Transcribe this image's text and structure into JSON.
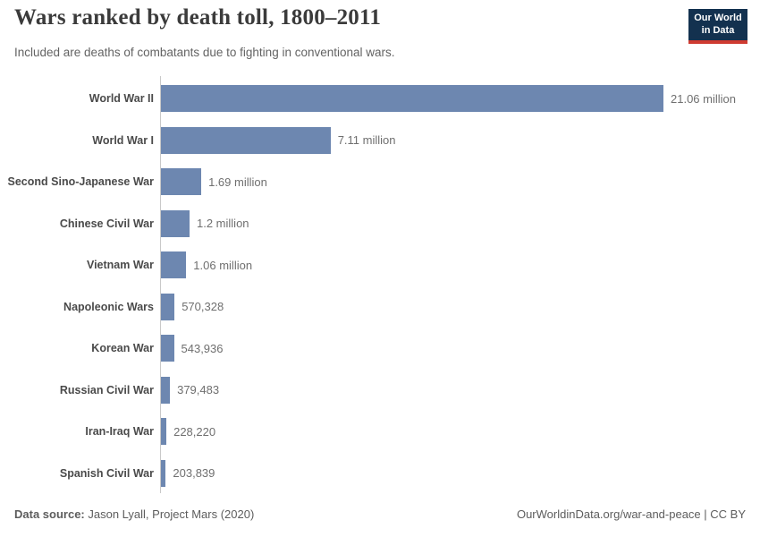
{
  "header": {
    "title": "Wars ranked by death toll, 1800–2011",
    "subtitle": "Included are deaths of combatants due to fighting in conventional wars.",
    "logo": {
      "line1": "Our World",
      "line2": "in Data",
      "bg_color": "#13314f",
      "accent_color": "#cf3b31",
      "text_color": "#ffffff"
    }
  },
  "chart_data": {
    "type": "bar",
    "orientation": "horizontal",
    "title": "Wars ranked by death toll, 1800–2011",
    "xlabel": "",
    "ylabel": "",
    "xlim": [
      0,
      21060000
    ],
    "grid": false,
    "legend": "none",
    "bar_color": "#6d87b0",
    "categories": [
      "World War II",
      "World War I",
      "Second Sino-Japanese War",
      "Chinese Civil War",
      "Vietnam War",
      "Napoleonic Wars",
      "Korean War",
      "Russian Civil War",
      "Iran-Iraq War",
      "Spanish Civil War"
    ],
    "values": [
      21060000,
      7110000,
      1690000,
      1200000,
      1060000,
      570328,
      543936,
      379483,
      228220,
      203839
    ],
    "value_labels": [
      "21.06 million",
      "7.11 million",
      "1.69 million",
      "1.2 million",
      "1.06 million",
      "570,328",
      "543,936",
      "379,483",
      "228,220",
      "203,839"
    ]
  },
  "footer": {
    "source_label": "Data source:",
    "source_text": "Jason Lyall, Project Mars (2020)",
    "right_text": "OurWorldinData.org/war-and-peace | CC BY"
  }
}
